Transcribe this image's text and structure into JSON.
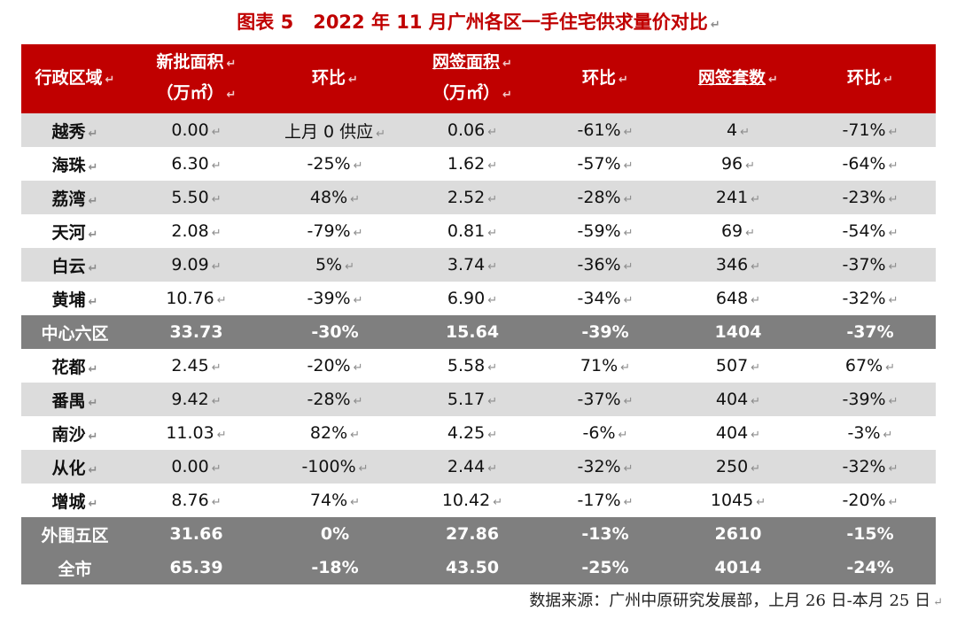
{
  "title": {
    "prefix": "图表 5",
    "text": "2022 年 11 月广州各区一手住宅供求量价对比"
  },
  "header": {
    "district": "行政区域",
    "new_area_line1": "新批面积",
    "new_area_line2": "（万㎡）",
    "mom_1": "环比",
    "signed_area_line1": "网签面积",
    "signed_area_line2": "（万㎡）",
    "mom_2": "环比",
    "signed_units": "网签套数",
    "mom_3": "环比"
  },
  "rows": [
    {
      "district": "越秀",
      "new_area": "0.00",
      "new_mom": "上月 0 供应",
      "signed_area": "0.06",
      "signed_area_mom": "-61%",
      "units": "4",
      "units_mom": "-71%"
    },
    {
      "district": "海珠",
      "new_area": "6.30",
      "new_mom": "-25%",
      "signed_area": "1.62",
      "signed_area_mom": "-57%",
      "units": "96",
      "units_mom": "-64%"
    },
    {
      "district": "荔湾",
      "new_area": "5.50",
      "new_mom": "48%",
      "signed_area": "2.52",
      "signed_area_mom": "-28%",
      "units": "241",
      "units_mom": "-23%"
    },
    {
      "district": "天河",
      "new_area": "2.08",
      "new_mom": "-79%",
      "signed_area": "0.81",
      "signed_area_mom": "-59%",
      "units": "69",
      "units_mom": "-54%"
    },
    {
      "district": "白云",
      "new_area": "9.09",
      "new_mom": "5%",
      "signed_area": "3.74",
      "signed_area_mom": "-36%",
      "units": "346",
      "units_mom": "-37%"
    },
    {
      "district": "黄埔",
      "new_area": "10.76",
      "new_mom": "-39%",
      "signed_area": "6.90",
      "signed_area_mom": "-34%",
      "units": "648",
      "units_mom": "-32%"
    }
  ],
  "central_total": {
    "district": "中心六区",
    "new_area": "33.73",
    "new_mom": "-30%",
    "signed_area": "15.64",
    "signed_area_mom": "-39%",
    "units": "1404",
    "units_mom": "-37%"
  },
  "outer_rows": [
    {
      "district": "花都",
      "new_area": "2.45",
      "new_mom": "-20%",
      "signed_area": "5.58",
      "signed_area_mom": "71%",
      "units": "507",
      "units_mom": "67%"
    },
    {
      "district": "番禺",
      "new_area": "9.42",
      "new_mom": "-28%",
      "signed_area": "5.17",
      "signed_area_mom": "-37%",
      "units": "404",
      "units_mom": "-39%"
    },
    {
      "district": "南沙",
      "new_area": "11.03",
      "new_mom": "82%",
      "signed_area": "4.25",
      "signed_area_mom": "-6%",
      "units": "404",
      "units_mom": "-3%"
    },
    {
      "district": "从化",
      "new_area": "0.00",
      "new_mom": "-100%",
      "signed_area": "2.44",
      "signed_area_mom": "-32%",
      "units": "250",
      "units_mom": "-32%"
    },
    {
      "district": "增城",
      "new_area": "8.76",
      "new_mom": "74%",
      "signed_area": "10.42",
      "signed_area_mom": "-17%",
      "units": "1045",
      "units_mom": "-20%"
    }
  ],
  "outer_total": {
    "district": "外围五区",
    "new_area": "31.66",
    "new_mom": "0%",
    "signed_area": "27.86",
    "signed_area_mom": "-13%",
    "units": "2610",
    "units_mom": "-15%"
  },
  "city_total": {
    "district": "全市",
    "new_area": "65.39",
    "new_mom": "-18%",
    "signed_area": "43.50",
    "signed_area_mom": "-25%",
    "units": "4014",
    "units_mom": "-24%"
  },
  "source": "数据来源：广州中原研究发展部，上月 26 日-本月 25 日",
  "colors": {
    "header_red": "#c00000",
    "summary_gray": "#7f7f7f",
    "stripe_gray": "#dcdcdc"
  },
  "glyphs": {
    "paragraph_mark": "↵"
  }
}
